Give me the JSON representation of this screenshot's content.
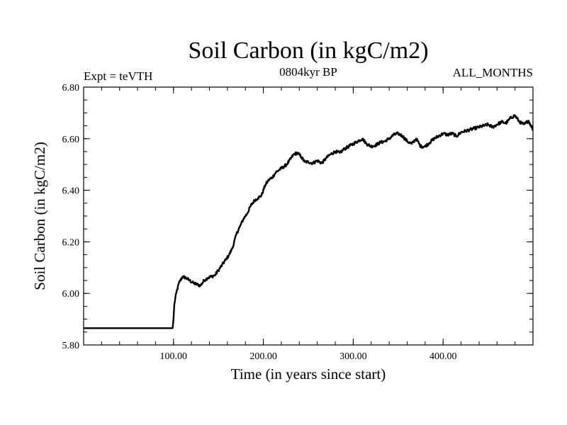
{
  "chart_data": {
    "type": "line",
    "title": "Soil Carbon (in kgC/m2)",
    "subtitle": "0804kyr BP",
    "left_label": "Expt = teVTH",
    "right_label": "ALL_MONTHS",
    "xlabel": "Time (in years since start)",
    "ylabel": "Soil Carbon (in kgC/m2)",
    "xlim": [
      0,
      500
    ],
    "ylim": [
      5.8,
      6.8
    ],
    "x_ticks": [
      100,
      200,
      300,
      400
    ],
    "x_tick_labels": [
      "100.00",
      "200.00",
      "300.00",
      "400.00"
    ],
    "y_ticks": [
      5.8,
      6.0,
      6.2,
      6.4,
      6.6,
      6.8
    ],
    "y_tick_labels": [
      "5.80",
      "6.00",
      "6.20",
      "6.40",
      "6.60",
      "6.80"
    ],
    "series": [
      {
        "name": "Soil Carbon",
        "x": [
          0,
          99,
          100,
          101,
          103,
          106,
          110,
          114,
          118,
          122,
          126,
          130,
          134,
          138,
          142,
          146,
          150,
          154,
          158,
          162,
          166,
          170,
          174,
          178,
          182,
          186,
          190,
          194,
          198,
          202,
          206,
          210,
          214,
          218,
          222,
          226,
          230,
          234,
          238,
          242,
          246,
          250,
          255,
          260,
          265,
          270,
          275,
          280,
          285,
          290,
          295,
          300,
          305,
          310,
          315,
          320,
          325,
          330,
          335,
          340,
          345,
          350,
          355,
          360,
          365,
          370,
          375,
          380,
          385,
          390,
          395,
          400,
          405,
          410,
          415,
          420,
          425,
          430,
          435,
          440,
          445,
          450,
          455,
          460,
          465,
          470,
          475,
          480,
          485,
          490,
          495,
          500
        ],
        "values": [
          5.865,
          5.865,
          5.9,
          5.96,
          6.0,
          6.04,
          6.065,
          6.06,
          6.05,
          6.04,
          6.035,
          6.03,
          6.05,
          6.06,
          6.065,
          6.07,
          6.09,
          6.11,
          6.13,
          6.15,
          6.18,
          6.23,
          6.26,
          6.29,
          6.31,
          6.34,
          6.36,
          6.37,
          6.38,
          6.42,
          6.44,
          6.45,
          6.47,
          6.48,
          6.49,
          6.5,
          6.52,
          6.54,
          6.545,
          6.53,
          6.51,
          6.51,
          6.505,
          6.515,
          6.505,
          6.525,
          6.54,
          6.55,
          6.545,
          6.56,
          6.57,
          6.58,
          6.59,
          6.6,
          6.58,
          6.57,
          6.575,
          6.585,
          6.59,
          6.6,
          6.615,
          6.62,
          6.61,
          6.59,
          6.58,
          6.6,
          6.57,
          6.57,
          6.585,
          6.6,
          6.61,
          6.62,
          6.615,
          6.62,
          6.61,
          6.625,
          6.63,
          6.635,
          6.64,
          6.645,
          6.65,
          6.655,
          6.645,
          6.655,
          6.665,
          6.66,
          6.68,
          6.69,
          6.665,
          6.655,
          6.67,
          6.635
        ]
      }
    ]
  }
}
